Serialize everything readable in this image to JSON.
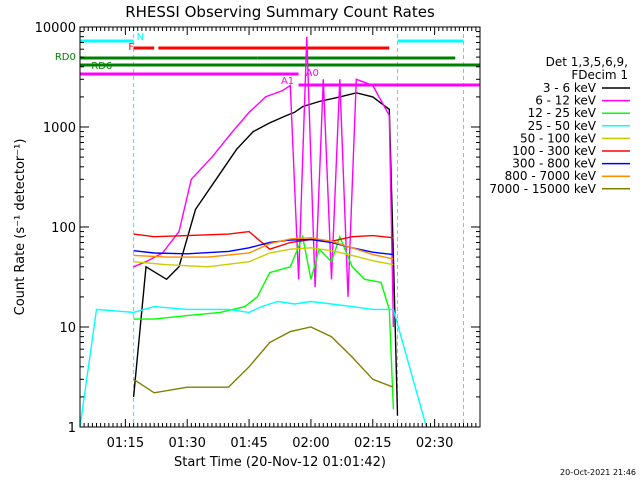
{
  "chart_data": {
    "type": "line",
    "title": "RHESSI Observing Summary Count Rates",
    "xlabel": "Start Time (20-Nov-12 01:01:42)",
    "ylabel": "Count Rate (s⁻¹ detector⁻¹)",
    "y_scale": "log",
    "ylim": [
      1,
      10000
    ],
    "xlim": [
      "01:04",
      "02:41"
    ],
    "x_ticks": [
      "01:15",
      "01:30",
      "01:45",
      "02:00",
      "02:15",
      "02:30"
    ],
    "y_ticks": [
      "1",
      "10",
      "100",
      "1000",
      "10000"
    ],
    "legend_placement": "right",
    "legend_header": [
      "Det 1,3,5,6,9,",
      "FDecim 1"
    ],
    "series": [
      {
        "name": "3 - 6 keV",
        "color": "#000000",
        "points": [
          [
            "01:17",
            2
          ],
          [
            "01:20",
            40
          ],
          [
            "01:25",
            30
          ],
          [
            "01:28",
            40
          ],
          [
            "01:32",
            150
          ],
          [
            "01:37",
            300
          ],
          [
            "01:42",
            600
          ],
          [
            "01:46",
            900
          ],
          [
            "01:50",
            1100
          ],
          [
            "01:54",
            1300
          ],
          [
            "01:56",
            1400
          ],
          [
            "01:58",
            1600
          ],
          [
            "02:02",
            1800
          ],
          [
            "02:07",
            2000
          ],
          [
            "02:11",
            2200
          ],
          [
            "02:15",
            2000
          ],
          [
            "02:19",
            1500
          ],
          [
            "02:20",
            50
          ],
          [
            "02:21",
            1.3
          ]
        ]
      },
      {
        "name": "6 - 12 keV",
        "color": "#ff00ff",
        "points": [
          [
            "01:17",
            40
          ],
          [
            "01:20",
            45
          ],
          [
            "01:24",
            55
          ],
          [
            "01:28",
            90
          ],
          [
            "01:31",
            300
          ],
          [
            "01:36",
            500
          ],
          [
            "01:41",
            900
          ],
          [
            "01:45",
            1400
          ],
          [
            "01:49",
            2000
          ],
          [
            "01:53",
            2300
          ],
          [
            "01:55",
            2600
          ],
          [
            "01:57",
            30
          ],
          [
            "01:59",
            8000
          ],
          [
            "02:01",
            25
          ],
          [
            "02:03",
            3000
          ],
          [
            "02:05",
            30
          ],
          [
            "02:07",
            3000
          ],
          [
            "02:09",
            20
          ],
          [
            "02:11",
            3000
          ],
          [
            "02:15",
            2600
          ],
          [
            "02:19",
            1300
          ],
          [
            "02:20",
            10
          ]
        ]
      },
      {
        "name": "12 - 25 keV",
        "color": "#00ff00",
        "points": [
          [
            "01:17",
            12
          ],
          [
            "01:22",
            12
          ],
          [
            "01:30",
            13
          ],
          [
            "01:38",
            14
          ],
          [
            "01:44",
            16
          ],
          [
            "01:47",
            20
          ],
          [
            "01:50",
            35
          ],
          [
            "01:55",
            40
          ],
          [
            "01:58",
            80
          ],
          [
            "02:00",
            30
          ],
          [
            "02:02",
            60
          ],
          [
            "02:05",
            45
          ],
          [
            "02:07",
            80
          ],
          [
            "02:10",
            40
          ],
          [
            "02:13",
            30
          ],
          [
            "02:17",
            28
          ],
          [
            "02:19",
            15
          ],
          [
            "02:20",
            1.5
          ]
        ]
      },
      {
        "name": "25 - 50 keV",
        "color": "#00ffff",
        "points": [
          [
            "01:04",
            1
          ],
          [
            "01:08",
            15
          ],
          [
            "01:17",
            14
          ],
          [
            "01:22",
            16
          ],
          [
            "01:30",
            15
          ],
          [
            "01:40",
            15
          ],
          [
            "01:45",
            14
          ],
          [
            "01:48",
            16
          ],
          [
            "01:52",
            18
          ],
          [
            "01:56",
            17
          ],
          [
            "02:00",
            18
          ],
          [
            "02:05",
            17
          ],
          [
            "02:10",
            16
          ],
          [
            "02:15",
            15
          ],
          [
            "02:20",
            15
          ],
          [
            "02:28",
            1
          ]
        ]
      },
      {
        "name": "50 - 100 keV",
        "color": "#cccc00",
        "points": [
          [
            "01:17",
            45
          ],
          [
            "01:25",
            42
          ],
          [
            "01:35",
            40
          ],
          [
            "01:45",
            45
          ],
          [
            "01:50",
            55
          ],
          [
            "01:55",
            60
          ],
          [
            "02:00",
            62
          ],
          [
            "02:05",
            58
          ],
          [
            "02:10",
            52
          ],
          [
            "02:15",
            46
          ],
          [
            "02:20",
            42
          ]
        ]
      },
      {
        "name": "100 - 300 keV",
        "color": "#ff0000",
        "points": [
          [
            "01:17",
            85
          ],
          [
            "01:22",
            80
          ],
          [
            "01:30",
            82
          ],
          [
            "01:40",
            85
          ],
          [
            "01:45",
            90
          ],
          [
            "01:50",
            60
          ],
          [
            "01:55",
            70
          ],
          [
            "02:00",
            75
          ],
          [
            "02:05",
            72
          ],
          [
            "02:10",
            80
          ],
          [
            "02:15",
            82
          ],
          [
            "02:20",
            78
          ]
        ]
      },
      {
        "name": "300 - 800 keV",
        "color": "#0000ff",
        "points": [
          [
            "01:17",
            58
          ],
          [
            "01:22",
            55
          ],
          [
            "01:30",
            54
          ],
          [
            "01:40",
            57
          ],
          [
            "01:45",
            62
          ],
          [
            "01:50",
            70
          ],
          [
            "01:55",
            74
          ],
          [
            "02:00",
            75
          ],
          [
            "02:05",
            70
          ],
          [
            "02:10",
            62
          ],
          [
            "02:15",
            56
          ],
          [
            "02:20",
            53
          ]
        ]
      },
      {
        "name": "800 - 7000 keV",
        "color": "#ff8c00",
        "points": [
          [
            "01:17",
            52
          ],
          [
            "01:25",
            50
          ],
          [
            "01:35",
            50
          ],
          [
            "01:45",
            55
          ],
          [
            "01:50",
            68
          ],
          [
            "01:55",
            76
          ],
          [
            "02:00",
            78
          ],
          [
            "02:05",
            72
          ],
          [
            "02:10",
            62
          ],
          [
            "02:15",
            53
          ],
          [
            "02:20",
            48
          ]
        ]
      },
      {
        "name": "7000 - 15000 keV",
        "color": "#808000",
        "points": [
          [
            "01:17",
            3
          ],
          [
            "01:22",
            2.2
          ],
          [
            "01:30",
            2.5
          ],
          [
            "01:40",
            2.5
          ],
          [
            "01:45",
            4
          ],
          [
            "01:50",
            7
          ],
          [
            "01:55",
            9
          ],
          [
            "02:00",
            10
          ],
          [
            "02:05",
            8
          ],
          [
            "02:10",
            5
          ],
          [
            "02:15",
            3
          ],
          [
            "02:20",
            2.5
          ]
        ]
      }
    ],
    "status_bars": [
      {
        "label": "N",
        "color": "#00ffff",
        "segments": [
          [
            "01:04",
            "01:17"
          ],
          [
            "02:21",
            "02:37"
          ]
        ]
      },
      {
        "label": "F",
        "color": "#ff0000",
        "segments": [
          [
            "01:17",
            "01:22"
          ],
          [
            "01:23",
            "02:19"
          ]
        ]
      },
      {
        "label": "RD0",
        "color": "#008000",
        "segments": [
          [
            "01:04",
            "01:47"
          ],
          [
            "01:47",
            "02:35"
          ]
        ]
      },
      {
        "label": "RD6",
        "color": "#008000",
        "segments": [
          [
            "01:04",
            "02:41"
          ]
        ]
      },
      {
        "label": "A1",
        "color": "#ff00ff",
        "segments": [
          [
            "01:57",
            "02:41"
          ]
        ]
      },
      {
        "label": "A0",
        "color": "#ff00ff",
        "segments": [
          [
            "01:04",
            "01:57"
          ]
        ]
      }
    ]
  },
  "footer": {
    "timestamp": "20-Oct-2021 21:46"
  },
  "colors": {
    "background": "#ffffff",
    "axis": "#000000"
  }
}
